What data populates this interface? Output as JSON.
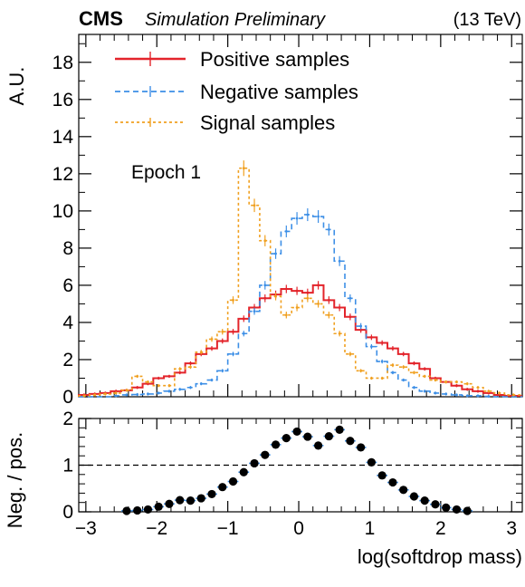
{
  "header": {
    "experiment": "CMS",
    "status": "Simulation Preliminary",
    "energy": "(13 TeV)"
  },
  "annotation": "Epoch 1",
  "colors": {
    "positive": "#e3242b",
    "negative": "#3d8fe6",
    "signal": "#f0a020",
    "ratio_points": "#000000"
  },
  "chart_data": [
    {
      "type": "line",
      "panel": "main",
      "ylabel": "A.U.",
      "xlim": [
        -3.1,
        3.15
      ],
      "ylim": [
        0,
        19.5
      ],
      "y_ticks": [
        0,
        2,
        4,
        6,
        8,
        10,
        12,
        14,
        16,
        18
      ],
      "bin_edges": [
        -3.1,
        -2.95,
        -2.8,
        -2.65,
        -2.5,
        -2.35,
        -2.2,
        -2.05,
        -1.9,
        -1.75,
        -1.6,
        -1.45,
        -1.3,
        -1.15,
        -1.0,
        -0.85,
        -0.7,
        -0.55,
        -0.4,
        -0.25,
        -0.1,
        0.05,
        0.2,
        0.35,
        0.5,
        0.65,
        0.8,
        0.95,
        1.1,
        1.25,
        1.4,
        1.55,
        1.7,
        1.85,
        2.0,
        2.15,
        2.3,
        2.45,
        2.6,
        2.75,
        2.9,
        3.15
      ],
      "series": [
        {
          "name": "Positive samples",
          "values": [
            0.1,
            0.15,
            0.2,
            0.3,
            0.35,
            0.5,
            0.7,
            1.0,
            1.1,
            1.3,
            1.8,
            2.3,
            2.6,
            3.0,
            3.5,
            4.2,
            4.8,
            5.3,
            5.5,
            5.8,
            5.7,
            5.6,
            6.0,
            5.2,
            4.8,
            4.3,
            3.6,
            3.2,
            2.9,
            2.6,
            2.3,
            1.8,
            1.5,
            1.0,
            0.8,
            0.6,
            0.4,
            0.3,
            0.2,
            0.1,
            0.05
          ]
        },
        {
          "name": "Negative samples",
          "values": [
            0.0,
            0.0,
            0.0,
            0.05,
            0.1,
            0.12,
            0.15,
            0.2,
            0.3,
            0.4,
            0.5,
            0.7,
            0.9,
            1.4,
            2.3,
            3.4,
            4.6,
            6.0,
            7.7,
            8.9,
            9.6,
            9.8,
            9.7,
            9.0,
            7.3,
            5.3,
            3.8,
            2.7,
            1.9,
            1.3,
            0.9,
            0.5,
            0.3,
            0.2,
            0.15,
            0.1,
            0.05,
            0.05,
            0.02,
            0.0,
            0.0
          ]
        },
        {
          "name": "Signal samples",
          "values": [
            0.05,
            0.1,
            0.15,
            0.2,
            0.35,
            1.1,
            0.8,
            0.6,
            0.6,
            1.5,
            1.6,
            2.4,
            3.1,
            3.5,
            5.2,
            12.3,
            10.3,
            8.4,
            5.4,
            4.4,
            4.8,
            5.3,
            5.0,
            4.4,
            3.4,
            2.3,
            1.4,
            1.0,
            1.0,
            1.7,
            1.6,
            1.3,
            1.1,
            0.9,
            0.8,
            0.8,
            0.7,
            0.5,
            0.3,
            0.2,
            0.1
          ]
        }
      ]
    },
    {
      "type": "scatter",
      "panel": "ratio",
      "xlabel": "log(softdrop mass)",
      "ylabel": "Neg. / pos.",
      "xlim": [
        -3.1,
        3.15
      ],
      "ylim": [
        0,
        2
      ],
      "x_ticks": [
        -3,
        -2,
        -1,
        0,
        1,
        2,
        3
      ],
      "x_tick_labels": [
        "−3",
        "−2",
        "−1",
        "0",
        "1",
        "2",
        "3"
      ],
      "y_ticks": [
        0,
        1,
        2
      ],
      "reference_line": 1,
      "x": [
        -2.425,
        -2.275,
        -2.125,
        -1.975,
        -1.825,
        -1.675,
        -1.525,
        -1.375,
        -1.225,
        -1.075,
        -0.925,
        -0.775,
        -0.625,
        -0.475,
        -0.325,
        -0.175,
        -0.025,
        0.125,
        0.275,
        0.425,
        0.575,
        0.725,
        0.875,
        1.025,
        1.175,
        1.325,
        1.475,
        1.625,
        1.775,
        1.925,
        2.075,
        2.225,
        2.375
      ],
      "y": [
        0.02,
        0.03,
        0.05,
        0.11,
        0.17,
        0.25,
        0.24,
        0.29,
        0.38,
        0.53,
        0.65,
        0.85,
        1.04,
        1.22,
        1.44,
        1.58,
        1.72,
        1.61,
        1.42,
        1.62,
        1.76,
        1.52,
        1.38,
        1.06,
        0.78,
        0.63,
        0.47,
        0.33,
        0.24,
        0.16,
        0.09,
        0.05,
        0.02
      ]
    }
  ]
}
